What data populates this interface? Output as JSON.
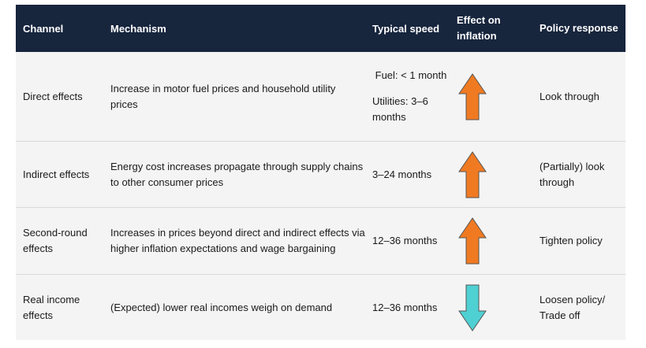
{
  "headers": {
    "channel": "Channel",
    "mechanism": "Mechanism",
    "speed": "Typical speed",
    "effect": "Effect on inflation",
    "policy": "Policy response"
  },
  "rows": [
    {
      "channel": "Direct effects",
      "mechanism": "Increase in motor fuel prices and household utility prices",
      "speed_lines": [
        "Fuel: < 1 month",
        "Utilities: 3–6 months"
      ],
      "effect_icon": "arrow-up-icon",
      "effect_color": "#f07a22",
      "policy": "Look through"
    },
    {
      "channel": "Indirect effects",
      "mechanism": "Energy cost increases propagate through supply chains to other consumer prices",
      "speed": "3–24 months",
      "effect_icon": "arrow-up-icon",
      "effect_color": "#f07a22",
      "policy": "(Partially) look through"
    },
    {
      "channel": "Second-round effects",
      "mechanism": "Increases in prices beyond direct and indirect effects via higher inflation expectations and wage bargaining",
      "speed": "12–36 months",
      "effect_icon": "arrow-up-icon",
      "effect_color": "#f07a22",
      "policy": "Tighten policy"
    },
    {
      "channel": "Real income effects",
      "mechanism": "(Expected) lower real incomes weigh on demand",
      "speed": "12–36 months",
      "effect_icon": "arrow-down-icon",
      "effect_color": "#4fd0d2",
      "policy": "Loosen policy/ Trade off"
    }
  ]
}
